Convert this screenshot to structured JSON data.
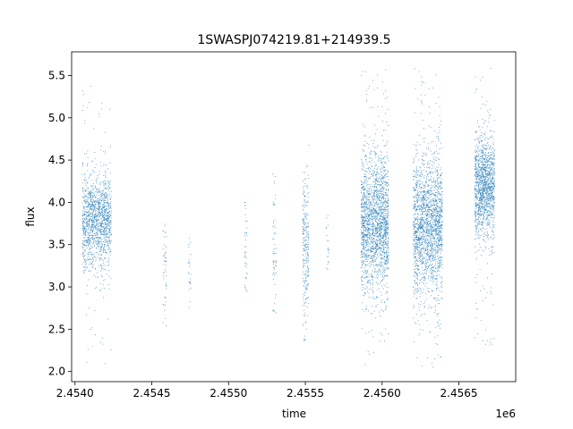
{
  "chart_data": {
    "type": "scatter",
    "title": "1SWASPJ074219.81+214939.5",
    "xlabel": "time",
    "ylabel": "flux",
    "x_offset_label": "1e6",
    "xlim": [
      2453978,
      2456870
    ],
    "ylim": [
      1.88,
      5.78
    ],
    "x_ticks": [
      2.454,
      2.4545,
      2.455,
      2.4555,
      2.456,
      2.4565
    ],
    "x_tick_labels": [
      "2.4540",
      "2.4545",
      "2.4550",
      "2.4555",
      "2.4560",
      "2.4565"
    ],
    "y_ticks": [
      2.0,
      2.5,
      3.0,
      3.5,
      4.0,
      4.5,
      5.0,
      5.5
    ],
    "y_tick_labels": [
      "2.0",
      "2.5",
      "3.0",
      "3.5",
      "4.0",
      "4.5",
      "5.0",
      "5.5"
    ],
    "grid": false,
    "legend": "none",
    "point_color": "#1f77b4",
    "series": [
      {
        "clusters": [
          {
            "x": [
              2454045,
              2454235
            ],
            "y_center": 3.78,
            "y_spread": 0.28,
            "y_range": [
              2.05,
              5.42
            ],
            "points": 1400
          },
          {
            "x": [
              2454570,
              2454595
            ],
            "y_center": 3.25,
            "y_spread": 0.3,
            "y_range": [
              2.3,
              3.8
            ],
            "points": 50
          },
          {
            "x": [
              2454735,
              2454752
            ],
            "y_center": 3.2,
            "y_spread": 0.25,
            "y_range": [
              2.75,
              3.6
            ],
            "points": 25
          },
          {
            "x": [
              2455103,
              2455120
            ],
            "y_center": 3.45,
            "y_spread": 0.32,
            "y_range": [
              2.9,
              4.05
            ],
            "points": 40
          },
          {
            "x": [
              2455285,
              2455310
            ],
            "y_center": 3.45,
            "y_spread": 0.4,
            "y_range": [
              2.7,
              4.4
            ],
            "points": 60
          },
          {
            "x": [
              2455480,
              2455520
            ],
            "y_center": 3.5,
            "y_spread": 0.45,
            "y_range": [
              2.35,
              4.7
            ],
            "points": 260
          },
          {
            "x": [
              2455635,
              2455650
            ],
            "y_center": 3.5,
            "y_spread": 0.25,
            "y_range": [
              3.1,
              3.85
            ],
            "points": 20
          },
          {
            "x": [
              2455860,
              2456040
            ],
            "y_center": 3.75,
            "y_spread": 0.4,
            "y_range": [
              2.08,
              5.62
            ],
            "points": 2000
          },
          {
            "x": [
              2456200,
              2456390
            ],
            "y_center": 3.75,
            "y_spread": 0.4,
            "y_range": [
              2.05,
              5.62
            ],
            "points": 2000
          },
          {
            "x": [
              2456600,
              2456730
            ],
            "y_center": 4.2,
            "y_spread": 0.3,
            "y_range": [
              2.3,
              5.6
            ],
            "points": 1400
          }
        ]
      }
    ]
  }
}
